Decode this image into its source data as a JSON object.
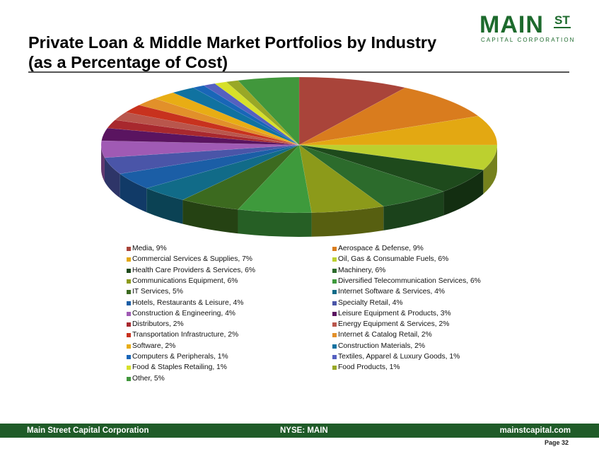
{
  "header": {
    "title_line1": "Private Loan & Middle Market Portfolios by Industry",
    "title_line2": "(as a Percentage of Cost)"
  },
  "logo": {
    "main": "MAIN",
    "superscript": "ST",
    "subtitle": "CAPITAL CORPORATION",
    "color": "#1d6a2d"
  },
  "chart_data": {
    "type": "pie",
    "style": "3d-exploded-none",
    "legend_position": "bottom",
    "slices": [
      {
        "label": "Media",
        "value": 9,
        "color": "#a9443a"
      },
      {
        "label": "Aerospace & Defense",
        "value": 9,
        "color": "#d97c1e"
      },
      {
        "label": "Commercial Services & Supplies",
        "value": 7,
        "color": "#e3a812"
      },
      {
        "label": "Oil, Gas & Consumable Fuels",
        "value": 6,
        "color": "#bcd02f"
      },
      {
        "label": "Health Care Providers & Services",
        "value": 6,
        "color": "#1e4a1c"
      },
      {
        "label": "Machinery",
        "value": 6,
        "color": "#2c6b2c"
      },
      {
        "label": "Communications Equipment",
        "value": 6,
        "color": "#8c9a1a"
      },
      {
        "label": "Diversified Telecommunication Services",
        "value": 6,
        "color": "#3e9a3c"
      },
      {
        "label": "IT Services",
        "value": 5,
        "color": "#3c6a1f"
      },
      {
        "label": "Internet Software & Services",
        "value": 4,
        "color": "#116b88"
      },
      {
        "label": "Hotels, Restaurants & Leisure",
        "value": 4,
        "color": "#1b5ea6"
      },
      {
        "label": "Specialty Retail",
        "value": 4,
        "color": "#4a55a8"
      },
      {
        "label": "Construction & Engineering",
        "value": 4,
        "color": "#a05ab4"
      },
      {
        "label": "Leisure Equipment & Products",
        "value": 3,
        "color": "#5a1460"
      },
      {
        "label": "Distributors",
        "value": 2,
        "color": "#a8282e"
      },
      {
        "label": "Energy Equipment & Services",
        "value": 2,
        "color": "#b9564c"
      },
      {
        "label": "Transportation Infrastructure",
        "value": 2,
        "color": "#c8321e"
      },
      {
        "label": "Internet & Catalog Retail",
        "value": 2,
        "color": "#e2902a"
      },
      {
        "label": "Software",
        "value": 2,
        "color": "#e8ad14"
      },
      {
        "label": "Construction Materials",
        "value": 2,
        "color": "#1072a0"
      },
      {
        "label": "Computers & Peripherals",
        "value": 1,
        "color": "#1966b8"
      },
      {
        "label": "Textiles, Apparel & Luxury Goods",
        "value": 1,
        "color": "#5560c0"
      },
      {
        "label": "Food & Staples Retailing",
        "value": 1,
        "color": "#d7e02a"
      },
      {
        "label": "Food Products",
        "value": 1,
        "color": "#99a826"
      },
      {
        "label": "Other",
        "value": 5,
        "color": "#41973c"
      }
    ]
  },
  "footer": {
    "left": "Main Street Capital Corporation",
    "center": "NYSE: MAIN",
    "right": "mainstcapital.com",
    "page": "Page  32",
    "bar_color": "#1f5b28"
  }
}
